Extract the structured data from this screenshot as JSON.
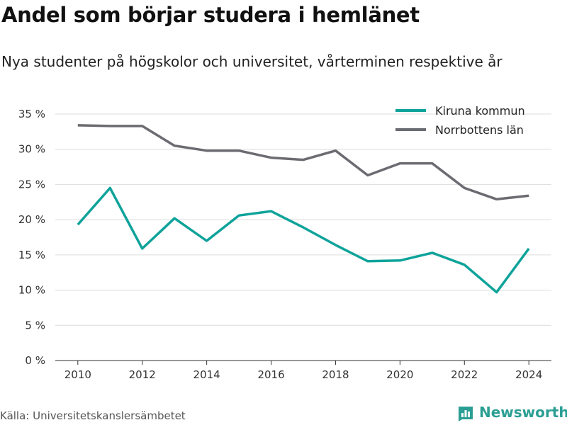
{
  "title": "Andel som börjar studera i hemlänet",
  "subtitle": "Nya studenter på högskolor och universitet, vårterminen respektive år",
  "source": "Källa: Universitetskanslersämbetet",
  "brand": {
    "name": "Newsworthy",
    "icon": "bar-chart-logo-icon",
    "color": "#2b9e93"
  },
  "chart_data": {
    "type": "line",
    "title": "Andel som börjar studera i hemlänet",
    "subtitle": "Nya studenter på högskolor och universitet, vårterminen respektive år",
    "x": [
      2010,
      2011,
      2012,
      2013,
      2014,
      2015,
      2016,
      2017,
      2018,
      2019,
      2020,
      2021,
      2022,
      2023,
      2024
    ],
    "x_ticks": [
      2010,
      2012,
      2014,
      2016,
      2018,
      2020,
      2022,
      2024
    ],
    "y_ticks": [
      0,
      5,
      10,
      15,
      20,
      25,
      30,
      35
    ],
    "y_tick_labels": [
      "0 %",
      "5 %",
      "10 %",
      "15 %",
      "20 %",
      "25 %",
      "30 %",
      "35 %"
    ],
    "ylim": [
      0,
      35
    ],
    "xlim": [
      2009.3,
      2024.7
    ],
    "grid": true,
    "legend_position": "top-right",
    "series": [
      {
        "name": "Kiruna kommun",
        "color": "#0ea39a",
        "values": [
          19.3,
          24.5,
          15.9,
          20.2,
          17.0,
          20.6,
          21.2,
          18.9,
          16.4,
          14.1,
          14.2,
          15.3,
          13.6,
          9.7,
          15.9
        ]
      },
      {
        "name": "Norrbottens län",
        "color": "#6b6b72",
        "values": [
          33.4,
          33.3,
          33.3,
          30.5,
          29.8,
          29.8,
          28.8,
          28.5,
          29.8,
          26.3,
          28.0,
          28.0,
          24.5,
          22.9,
          23.4
        ]
      }
    ]
  }
}
